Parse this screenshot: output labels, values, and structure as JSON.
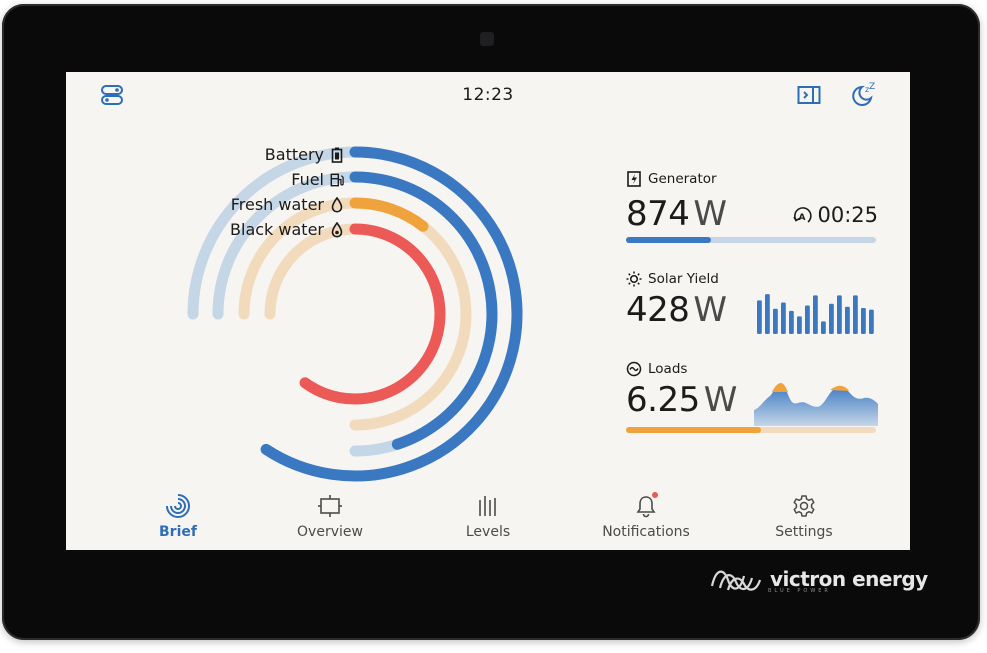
{
  "header": {
    "time": "12:23"
  },
  "tanks": [
    {
      "label": "Battery",
      "icon": "battery-icon",
      "level": 0.79,
      "color": "#3b78c2"
    },
    {
      "label": "Fuel",
      "icon": "fuel-pump-icon",
      "level": 0.6,
      "color": "#3b78c2"
    },
    {
      "label": "Fresh water",
      "icon": "water-drop-icon",
      "level": 0.14,
      "color": "#f0a23c"
    },
    {
      "label": "Black water",
      "icon": "black-water-drop-icon",
      "level": 0.8,
      "color": "#ec5a58"
    }
  ],
  "generator": {
    "title": "Generator",
    "value": "874",
    "unit": "W",
    "runtime": "00:25",
    "level": 0.34
  },
  "solar": {
    "title": "Solar Yield",
    "value": "428",
    "unit": "W",
    "history": [
      0.8,
      0.95,
      0.6,
      0.75,
      0.55,
      0.42,
      0.68,
      0.92,
      0.3,
      0.72,
      0.92,
      0.65,
      0.92,
      0.62,
      0.58
    ]
  },
  "loads": {
    "title": "Loads",
    "value": "6.25",
    "unit": "W",
    "level": 0.54
  },
  "nav": [
    {
      "label": "Brief",
      "icon": "brief-icon",
      "active": true
    },
    {
      "label": "Overview",
      "icon": "overview-icon",
      "active": false
    },
    {
      "label": "Levels",
      "icon": "levels-icon",
      "active": false
    },
    {
      "label": "Notifications",
      "icon": "bell-icon",
      "active": false
    },
    {
      "label": "Settings",
      "icon": "gear-icon",
      "active": false
    }
  ],
  "brand": {
    "name": "victron energy",
    "tagline": "BLUE POWER"
  },
  "colors": {
    "accent": "#3b78c2",
    "track_blue": "#c5d6e7",
    "track_orange": "#f2dbbd",
    "orange": "#f0a23c",
    "red": "#ec5a58",
    "screen_bg": "#f7f5f1"
  }
}
